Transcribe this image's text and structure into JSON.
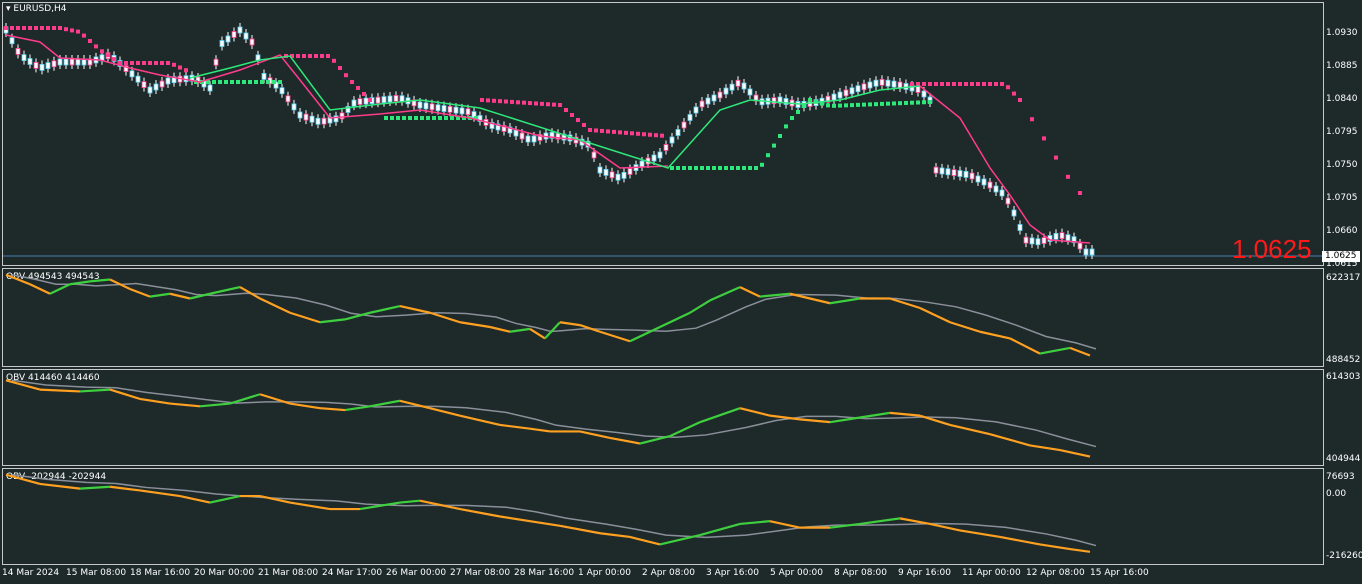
{
  "symbol": "EURUSD,H4",
  "current_price": "1.0625",
  "current_price_big": "1.0625",
  "colors": {
    "background": "#1e2a2a",
    "bull": "#5ad0f0",
    "bear": "#ff3c8c",
    "up_trend": "#2ee87a",
    "down_trend": "#ff3c8c",
    "obv_up": "#3ecf3e",
    "obv_down": "#ffa020",
    "obv_signal": "#8a8f9a",
    "price_line": "#4a7fb0"
  },
  "price_axis": [
    "1.0930",
    "1.0885",
    "1.0840",
    "1.0795",
    "1.0750",
    "1.0705",
    "1.0660",
    "1.0615"
  ],
  "time_axis": [
    "14 Mar 2024",
    "15 Mar 08:00",
    "18 Mar 16:00",
    "20 Mar 00:00",
    "21 Mar 08:00",
    "24 Mar 17:00",
    "26 Mar 00:00",
    "27 Mar 08:00",
    "28 Mar 16:00",
    "1 Apr 00:00",
    "2 Apr 08:00",
    "3 Apr 16:00",
    "5 Apr 00:00",
    "8 Apr 08:00",
    "9 Apr 16:00",
    "11 Apr 00:00",
    "12 Apr 08:00",
    "15 Apr 16:00"
  ],
  "indicators": [
    {
      "label": "OBV 494543 494543",
      "axis_top": "622317",
      "axis_bottom": "488452"
    },
    {
      "label": "OBV 414460 414460",
      "axis_top": "614303",
      "axis_bottom": "404944"
    },
    {
      "label": "OBV -202944 -202944",
      "axis_top": "76693",
      "axis_mid": "0.00",
      "axis_bottom": "-216260"
    }
  ]
}
